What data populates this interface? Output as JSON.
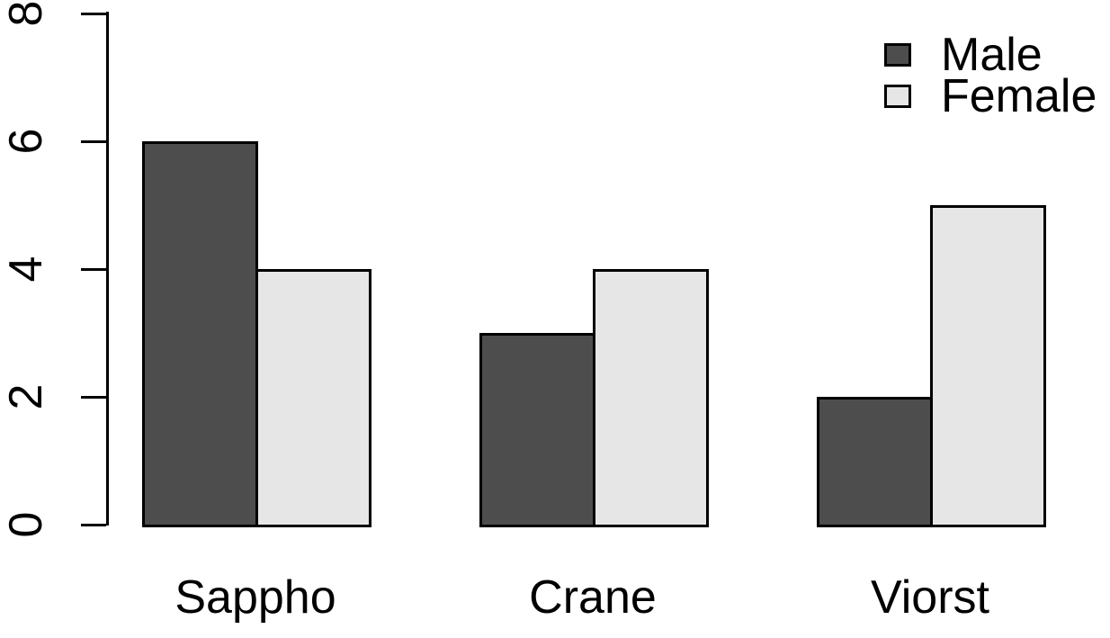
{
  "chart_data": {
    "type": "bar",
    "title": "",
    "xlabel": "",
    "ylabel": "",
    "categories": [
      "Sappho",
      "Crane",
      "Viorst"
    ],
    "series": [
      {
        "name": "Male",
        "color": "#4D4D4D",
        "values": [
          6,
          3,
          2
        ]
      },
      {
        "name": "Female",
        "color": "#E6E6E6",
        "values": [
          4,
          4,
          5
        ]
      }
    ],
    "ylim": [
      0,
      8
    ],
    "yticks": [
      0,
      2,
      4,
      6,
      8
    ],
    "grid": false,
    "legend_position": "top-right",
    "bar_border_color": "#000000",
    "axis_color": "#000000",
    "background": "#FFFFFF"
  }
}
